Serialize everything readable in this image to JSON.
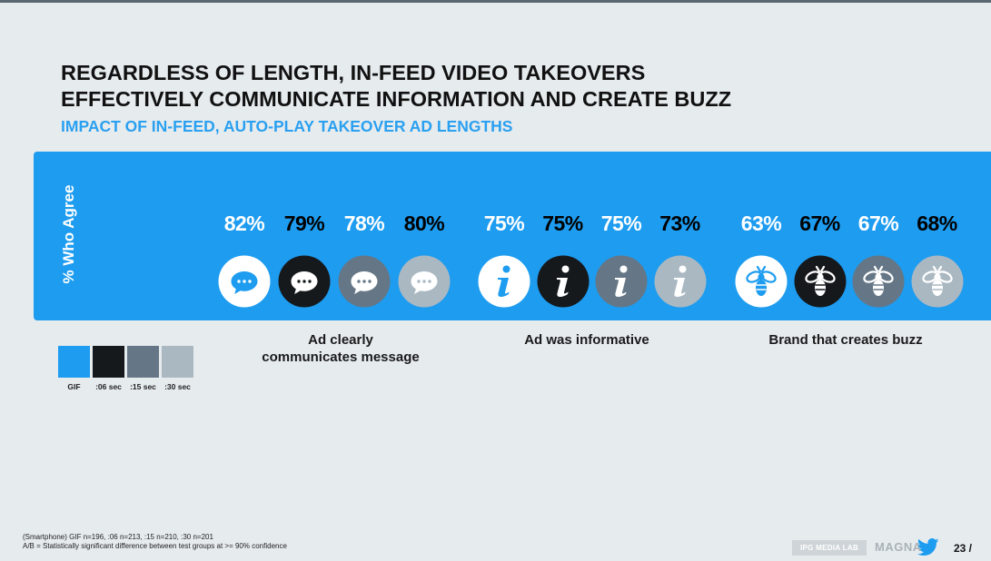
{
  "title_line1": "REGARDLESS OF LENGTH, IN-FEED VIDEO TAKEOVERS",
  "title_line2": "EFFECTIVELY COMMUNICATE INFORMATION AND CREATE BUZZ",
  "subtitle": "IMPACT OF IN-FEED, AUTO-PLAY TAKEOVER AD LENGTHS",
  "colors": {
    "panel": "#1d9cf0",
    "gif": "#1d9cf0",
    "06_sec": "#16191c",
    "15_sec": "#657786",
    "30_sec": "#aab8c2"
  },
  "chart_data": {
    "type": "table",
    "ylabel": "% Who Agree",
    "unit": "%",
    "categories": [
      "Ad clearly communicates message",
      "Ad was informative",
      "Brand that creates buzz"
    ],
    "series": [
      {
        "name": "GIF",
        "values": [
          82,
          75,
          63
        ]
      },
      {
        "name": ":06 sec",
        "values": [
          79,
          75,
          67
        ]
      },
      {
        "name": ":15 sec",
        "values": [
          78,
          75,
          67
        ]
      },
      {
        "name": ":30 sec",
        "values": [
          80,
          73,
          68
        ]
      }
    ],
    "category_icons": [
      "speech-bubble-icon",
      "info-icon",
      "bee-icon"
    ],
    "value_labels": [
      [
        "82%",
        "79%",
        "78%",
        "80%"
      ],
      [
        "75%",
        "75%",
        "75%",
        "73%"
      ],
      [
        "63%",
        "67%",
        "67%",
        "68%"
      ]
    ],
    "category_labels": [
      [
        "Ad clearly",
        "communicates message"
      ],
      [
        "Ad was informative"
      ],
      [
        "Brand that creates buzz"
      ]
    ],
    "legend": [
      "GIF",
      ":06 sec",
      ":15 sec",
      ":30 sec"
    ],
    "legend_placement": "bottom-left"
  },
  "footnote_line1": "(Smartphone) GIF n=196, :06 n=213, :15 n=210, :30 n=201",
  "footnote_line2": "A/B = Statistically significant difference between test groups at >= 90% confidence",
  "footer": {
    "ipg_logo": "IPG MEDIA LAB",
    "magna_logo": "MAGNA",
    "twitter_icon": "twitter-bird-icon",
    "page": "23 /"
  }
}
